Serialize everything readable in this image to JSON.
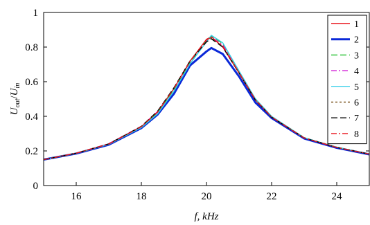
{
  "chart_data": {
    "type": "line",
    "xlim": [
      15,
      25
    ],
    "ylim": [
      0,
      1
    ],
    "x_ticks": [
      16,
      18,
      20,
      22,
      24
    ],
    "y_ticks": [
      0,
      0.2,
      0.4,
      0.6,
      0.8,
      1
    ],
    "xlabel": "f, kHz",
    "ylabel": "Uout/Uin",
    "ylabel_parts": {
      "u1": "U",
      "sub1": "out",
      "slash": "/",
      "u2": "U",
      "sub2": "in"
    },
    "grid": false,
    "legend_position": "top-right",
    "x": [
      15,
      16,
      17,
      18,
      18.5,
      19,
      19.5,
      20,
      20.15,
      20.5,
      21,
      21.5,
      22,
      23,
      24,
      25
    ],
    "series": [
      {
        "name": "1",
        "color": "#e8141c",
        "dash": "solid",
        "width": 1.4,
        "values": [
          0.15,
          0.187,
          0.24,
          0.34,
          0.425,
          0.56,
          0.72,
          0.845,
          0.86,
          0.8,
          0.65,
          0.495,
          0.395,
          0.275,
          0.22,
          0.182
        ]
      },
      {
        "name": "2",
        "color": "#0a28d8",
        "dash": "solid",
        "width": 3,
        "values": [
          0.15,
          0.185,
          0.236,
          0.332,
          0.41,
          0.53,
          0.695,
          0.775,
          0.795,
          0.76,
          0.63,
          0.48,
          0.39,
          0.272,
          0.218,
          0.18
        ]
      },
      {
        "name": "3",
        "color": "#1fbf2a",
        "dash": "longdash",
        "width": 1.4,
        "values": [
          0.15,
          0.187,
          0.24,
          0.338,
          0.422,
          0.555,
          0.712,
          0.835,
          0.865,
          0.82,
          0.66,
          0.5,
          0.398,
          0.276,
          0.221,
          0.182
        ]
      },
      {
        "name": "4",
        "color": "#d21fd6",
        "dash": "dashdot",
        "width": 1.4,
        "values": [
          0.15,
          0.187,
          0.242,
          0.342,
          0.428,
          0.56,
          0.718,
          0.84,
          0.858,
          0.812,
          0.655,
          0.498,
          0.396,
          0.275,
          0.22,
          0.182
        ]
      },
      {
        "name": "5",
        "color": "#35cfe8",
        "dash": "solid",
        "width": 1.4,
        "values": [
          0.15,
          0.186,
          0.238,
          0.335,
          0.415,
          0.545,
          0.705,
          0.83,
          0.868,
          0.825,
          0.662,
          0.502,
          0.4,
          0.277,
          0.222,
          0.183
        ]
      },
      {
        "name": "6",
        "color": "#7a5520",
        "dash": "dot",
        "width": 1.6,
        "values": [
          0.15,
          0.187,
          0.24,
          0.34,
          0.425,
          0.56,
          0.72,
          0.842,
          0.855,
          0.805,
          0.652,
          0.496,
          0.396,
          0.276,
          0.221,
          0.182
        ]
      },
      {
        "name": "7",
        "color": "#000000",
        "dash": "longdash",
        "width": 1.4,
        "values": [
          0.15,
          0.187,
          0.241,
          0.342,
          0.43,
          0.565,
          0.722,
          0.83,
          0.848,
          0.8,
          0.65,
          0.495,
          0.395,
          0.275,
          0.22,
          0.182
        ]
      },
      {
        "name": "8",
        "color": "#e8141c",
        "dash": "dashdot",
        "width": 1.4,
        "values": [
          0.15,
          0.187,
          0.24,
          0.34,
          0.425,
          0.56,
          0.72,
          0.842,
          0.856,
          0.805,
          0.652,
          0.496,
          0.396,
          0.275,
          0.22,
          0.182
        ]
      }
    ]
  }
}
